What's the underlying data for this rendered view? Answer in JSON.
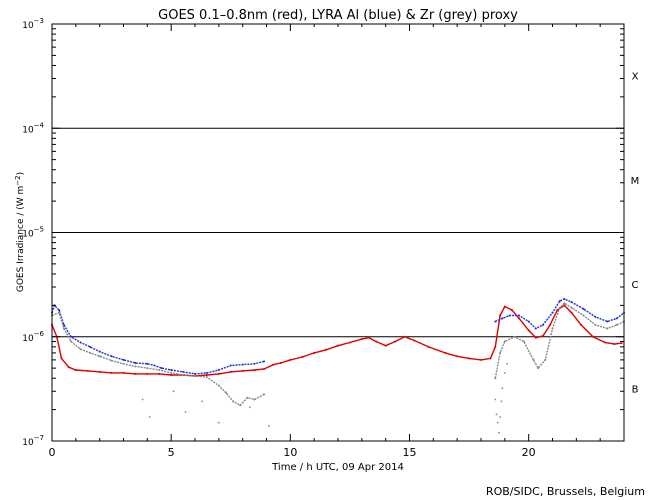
{
  "chart_data": {
    "type": "line",
    "title": "GOES 0.1–0.8nm (red), LYRA Al (blue) & Zr (grey) proxy",
    "xlabel": "Time / h UTC, 09 Apr 2014",
    "ylabel_main": "GOES Irradiance / (W m",
    "ylabel_sup": "−2",
    "ylabel_end": ")",
    "xlim": [
      0,
      24
    ],
    "ylim": [
      1e-07,
      0.001
    ],
    "yscale": "log",
    "x_ticks": [
      {
        "value": 0,
        "label": "0"
      },
      {
        "value": 5,
        "label": "5"
      },
      {
        "value": 10,
        "label": "10"
      },
      {
        "value": 15,
        "label": "15"
      },
      {
        "value": 20,
        "label": "20"
      }
    ],
    "y_ticks": [
      {
        "value": 1e-07,
        "base": "10",
        "exp": "−7"
      },
      {
        "value": 1e-06,
        "base": "10",
        "exp": "−6"
      },
      {
        "value": 1e-05,
        "base": "10",
        "exp": "−5"
      },
      {
        "value": 0.0001,
        "base": "10",
        "exp": "−4"
      },
      {
        "value": 0.001,
        "base": "10",
        "exp": "−3"
      }
    ],
    "threshold_lines": [
      1e-06,
      1e-05,
      0.0001
    ],
    "flare_classes": [
      {
        "label": "X",
        "value": 0.00032
      },
      {
        "label": "M",
        "value": 3.2e-05
      },
      {
        "label": "C",
        "value": 3.2e-06
      },
      {
        "label": "B",
        "value": 3.2e-07
      }
    ],
    "series": [
      {
        "key": "goes",
        "color": "#dd0000",
        "points": [
          [
            0.0,
            1.3e-06
          ],
          [
            0.2,
            1e-06
          ],
          [
            0.4,
            6.2e-07
          ],
          [
            0.7,
            5.1e-07
          ],
          [
            1.0,
            4.8e-07
          ],
          [
            1.5,
            4.7e-07
          ],
          [
            2.0,
            4.6e-07
          ],
          [
            2.5,
            4.5e-07
          ],
          [
            3.0,
            4.5e-07
          ],
          [
            3.5,
            4.4e-07
          ],
          [
            4.0,
            4.4e-07
          ],
          [
            4.5,
            4.4e-07
          ],
          [
            5.0,
            4.3e-07
          ],
          [
            5.5,
            4.3e-07
          ],
          [
            6.0,
            4.2e-07
          ],
          [
            6.5,
            4.3e-07
          ],
          [
            7.0,
            4.4e-07
          ],
          [
            7.5,
            4.6e-07
          ],
          [
            8.0,
            4.7e-07
          ],
          [
            8.5,
            4.8e-07
          ],
          [
            8.9,
            4.9e-07
          ],
          [
            9.3,
            5.4e-07
          ],
          [
            9.6,
            5.6e-07
          ],
          [
            10.0,
            6e-07
          ],
          [
            10.5,
            6.4e-07
          ],
          [
            11.0,
            7e-07
          ],
          [
            11.5,
            7.5e-07
          ],
          [
            12.0,
            8.2e-07
          ],
          [
            12.5,
            8.8e-07
          ],
          [
            13.0,
            9.5e-07
          ],
          [
            13.3,
            9.8e-07
          ],
          [
            13.6,
            9e-07
          ],
          [
            14.0,
            8.2e-07
          ],
          [
            14.4,
            9e-07
          ],
          [
            14.8,
            1e-06
          ],
          [
            15.2,
            9.2e-07
          ],
          [
            15.8,
            8e-07
          ],
          [
            16.5,
            7e-07
          ],
          [
            17.0,
            6.5e-07
          ],
          [
            17.5,
            6.2e-07
          ],
          [
            18.0,
            6e-07
          ],
          [
            18.4,
            6.2e-07
          ],
          [
            18.6,
            8e-07
          ],
          [
            18.8,
            1.6e-06
          ],
          [
            19.0,
            1.95e-06
          ],
          [
            19.3,
            1.8e-06
          ],
          [
            19.6,
            1.5e-06
          ],
          [
            20.0,
            1.15e-06
          ],
          [
            20.3,
            9.8e-07
          ],
          [
            20.6,
            1.02e-06
          ],
          [
            20.9,
            1.3e-06
          ],
          [
            21.2,
            1.8e-06
          ],
          [
            21.5,
            2e-06
          ],
          [
            21.8,
            1.7e-06
          ],
          [
            22.2,
            1.3e-06
          ],
          [
            22.7,
            1e-06
          ],
          [
            23.2,
            8.8e-07
          ],
          [
            23.6,
            8.5e-07
          ],
          [
            23.9,
            8.7e-07
          ]
        ]
      },
      {
        "key": "lyra_al",
        "color": "#1f2fd8",
        "points": [
          [
            0.0,
            1.7e-06
          ],
          [
            0.1,
            2e-06
          ],
          [
            0.3,
            1.8e-06
          ],
          [
            0.5,
            1.3e-06
          ],
          [
            0.8,
            1e-06
          ],
          [
            1.2,
            8.8e-07
          ],
          [
            1.6,
            8e-07
          ],
          [
            2.0,
            7.2e-07
          ],
          [
            2.5,
            6.5e-07
          ],
          [
            3.0,
            6e-07
          ],
          [
            3.5,
            5.6e-07
          ],
          [
            4.0,
            5.5e-07
          ],
          [
            4.3,
            5.3e-07
          ],
          [
            4.6,
            5e-07
          ],
          [
            5.0,
            4.8e-07
          ],
          [
            5.5,
            4.6e-07
          ],
          [
            6.0,
            4.4e-07
          ],
          [
            6.5,
            4.5e-07
          ],
          [
            7.0,
            4.8e-07
          ],
          [
            7.5,
            5.3e-07
          ],
          [
            8.0,
            5.4e-07
          ],
          [
            8.5,
            5.5e-07
          ],
          [
            8.9,
            5.8e-07
          ],
          [
            18.6,
            1.4e-06
          ],
          [
            18.9,
            1.5e-06
          ],
          [
            19.2,
            1.6e-06
          ],
          [
            19.6,
            1.6e-06
          ],
          [
            20.0,
            1.4e-06
          ],
          [
            20.3,
            1.2e-06
          ],
          [
            20.6,
            1.3e-06
          ],
          [
            21.0,
            1.7e-06
          ],
          [
            21.3,
            2.2e-06
          ],
          [
            21.5,
            2.3e-06
          ],
          [
            21.8,
            2.15e-06
          ],
          [
            22.3,
            1.85e-06
          ],
          [
            22.8,
            1.55e-06
          ],
          [
            23.3,
            1.4e-06
          ],
          [
            23.7,
            1.5e-06
          ],
          [
            24.0,
            1.7e-06
          ]
        ]
      },
      {
        "key": "lyra_zr",
        "color": "#888888",
        "points": [
          [
            0.0,
            1.6e-06
          ],
          [
            0.3,
            1.7e-06
          ],
          [
            0.5,
            1.2e-06
          ],
          [
            0.8,
            9e-07
          ],
          [
            1.2,
            7.6e-07
          ],
          [
            1.6,
            7e-07
          ],
          [
            2.0,
            6.5e-07
          ],
          [
            2.5,
            5.9e-07
          ],
          [
            3.0,
            5.5e-07
          ],
          [
            3.5,
            5.2e-07
          ],
          [
            4.0,
            5e-07
          ],
          [
            4.5,
            4.8e-07
          ],
          [
            5.0,
            4.5e-07
          ],
          [
            5.5,
            4.3e-07
          ],
          [
            6.0,
            4.2e-07
          ],
          [
            6.5,
            4.1e-07
          ],
          [
            7.0,
            3.4e-07
          ],
          [
            7.3,
            2.9e-07
          ],
          [
            7.6,
            2.4e-07
          ],
          [
            7.9,
            2.2e-07
          ],
          [
            8.2,
            2.6e-07
          ],
          [
            8.5,
            2.5e-07
          ],
          [
            8.9,
            2.8e-07
          ],
          [
            18.6,
            4e-07
          ],
          [
            18.8,
            7e-07
          ],
          [
            19.0,
            9e-07
          ],
          [
            19.4,
            1e-06
          ],
          [
            19.8,
            9e-07
          ],
          [
            20.2,
            6e-07
          ],
          [
            20.4,
            5e-07
          ],
          [
            20.7,
            6e-07
          ],
          [
            21.0,
            1.2e-06
          ],
          [
            21.3,
            1.9e-06
          ],
          [
            21.5,
            2.1e-06
          ],
          [
            21.8,
            1.9e-06
          ],
          [
            22.3,
            1.6e-06
          ],
          [
            22.8,
            1.3e-06
          ],
          [
            23.3,
            1.2e-06
          ],
          [
            23.7,
            1.3e-06
          ],
          [
            24.0,
            1.4e-06
          ]
        ]
      }
    ],
    "scatter_dots": [
      [
        3.8,
        2.5e-07
      ],
      [
        5.1,
        3e-07
      ],
      [
        5.6,
        1.9e-07
      ],
      [
        6.3,
        2.4e-07
      ],
      [
        7.0,
        1.5e-07
      ],
      [
        8.3,
        2.1e-07
      ],
      [
        9.1,
        1.4e-07
      ],
      [
        4.1,
        1.7e-07
      ],
      [
        18.6,
        2.5e-07
      ],
      [
        18.65,
        1.8e-07
      ],
      [
        18.7,
        1.5e-07
      ],
      [
        18.75,
        1.2e-07
      ],
      [
        18.8,
        1.7e-07
      ],
      [
        18.85,
        2.4e-07
      ],
      [
        18.9,
        3.2e-07
      ],
      [
        19.0,
        4.5e-07
      ],
      [
        19.1,
        5.5e-07
      ]
    ]
  },
  "credit": "ROB/SIDC, Brussels, Belgium"
}
